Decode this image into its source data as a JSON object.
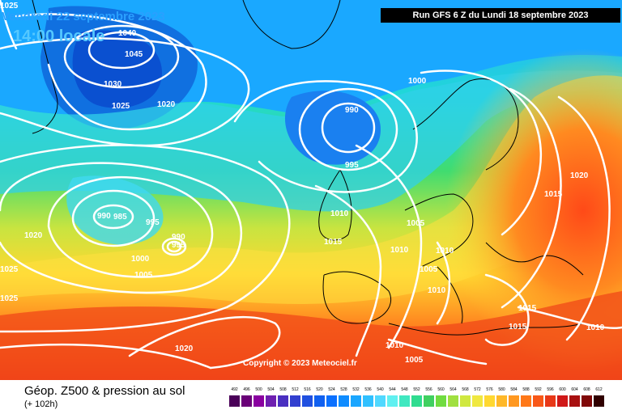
{
  "header": {
    "date": "Vendredi 22 septembre 2023",
    "time": "14:00 locale",
    "run": "Run GFS 6 Z du Lundi 18 septembre 2023"
  },
  "copyright": "Copyright © 2023 Meteociel.fr",
  "footer": {
    "title": "Géop. Z500 & pression au sol",
    "subtitle": "(+ 102h)"
  },
  "isobar_labels": [
    "1025",
    "1040",
    "1045",
    "1030",
    "1025",
    "1020",
    "1000",
    "990",
    "995",
    "990",
    "985",
    "995",
    "990",
    "995",
    "1020",
    "1000",
    "1005",
    "1025",
    "1025",
    "1010",
    "1015",
    "1005",
    "1010",
    "1005",
    "1010",
    "1010",
    "1015",
    "1020",
    "1015",
    "1010",
    "1010",
    "1005",
    "1020"
  ],
  "scale": {
    "labels": [
      "492",
      "496",
      "500",
      "504",
      "508",
      "512",
      "516",
      "520",
      "524",
      "528",
      "532",
      "536",
      "540",
      "544",
      "548",
      "552",
      "556",
      "560",
      "564",
      "568",
      "572",
      "576",
      "580",
      "584",
      "588",
      "592",
      "596",
      "600",
      "604",
      "608",
      "612"
    ],
    "colors": [
      "#4a0058",
      "#6a0078",
      "#8a00a0",
      "#6e1fb0",
      "#4a2fc0",
      "#3240d0",
      "#2050e0",
      "#1060f0",
      "#0a70ff",
      "#0f8cff",
      "#1aa6ff",
      "#30c0ff",
      "#50d8ff",
      "#60f0f0",
      "#40e8c0",
      "#30dc90",
      "#40d060",
      "#70dc40",
      "#a0e040",
      "#d0e840",
      "#f0e840",
      "#ffd830",
      "#ffb828",
      "#ff9820",
      "#ff7818",
      "#f85818",
      "#e83818",
      "#d01818",
      "#a81010",
      "#800808",
      "#300000"
    ]
  },
  "colors": {
    "accent_date": "#2aa0ff",
    "accent_time": "#55c8ff"
  }
}
